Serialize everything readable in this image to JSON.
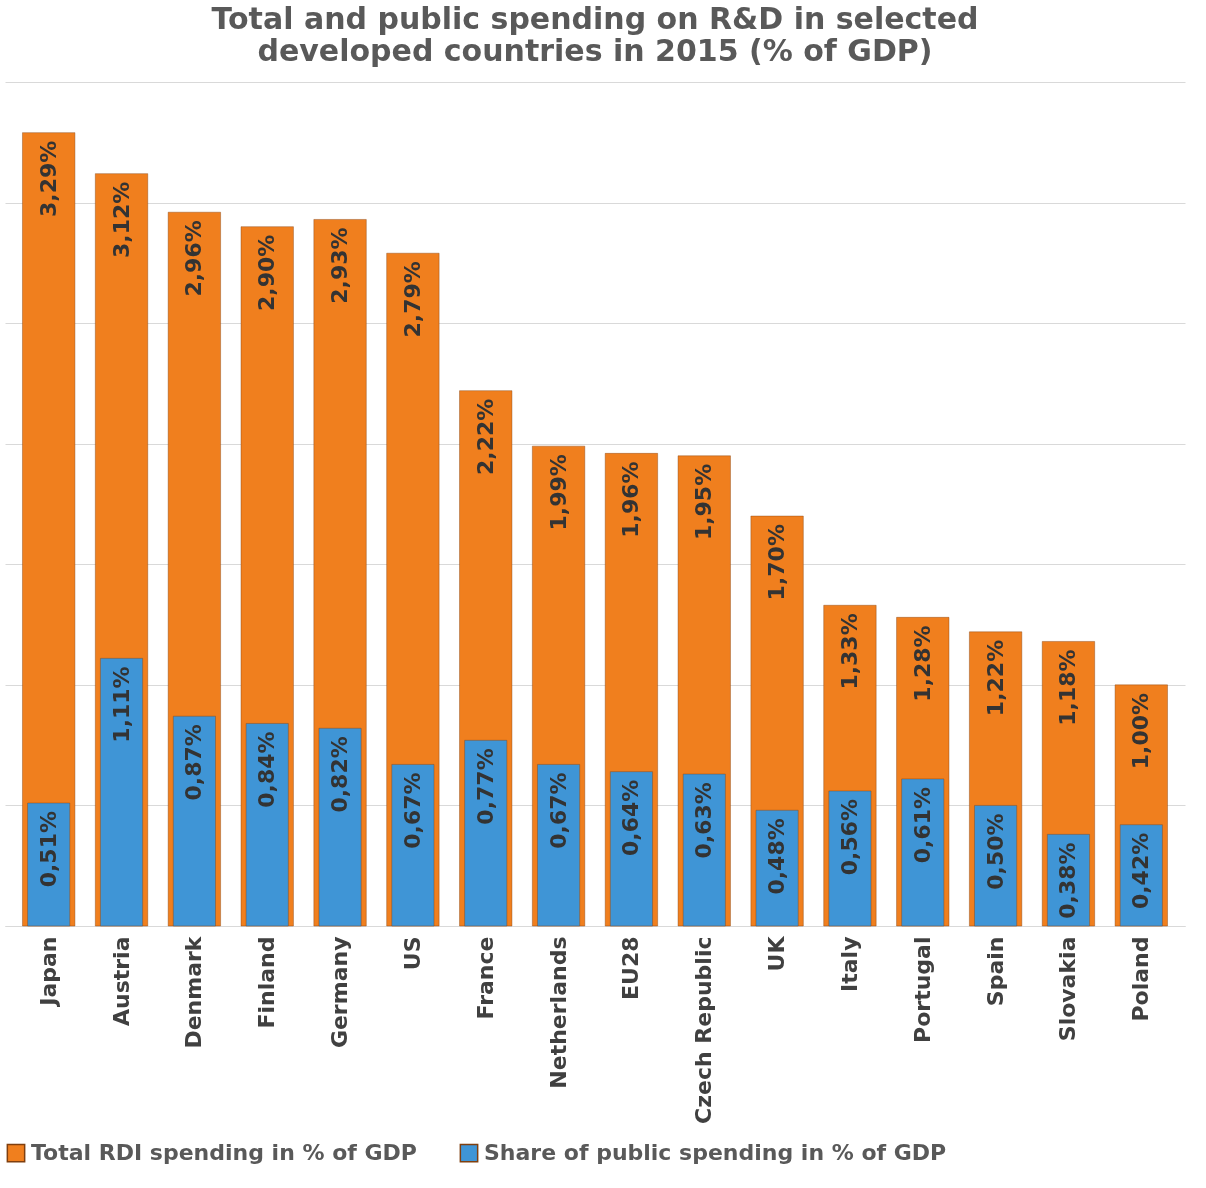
{
  "chart_data": {
    "type": "bar",
    "title": "Total and public spending on R&D in selected developed countries in 2015 (% of GDP)",
    "categories": [
      "Japan",
      "Austria",
      "Denmark",
      "Finland",
      "Germany",
      "US",
      "France",
      "Netherlands",
      "EU28",
      "Czech Republic",
      "UK",
      "Italy",
      "Portugal",
      "Spain",
      "Slovakia",
      "Poland"
    ],
    "series": [
      {
        "name": "Total RDI spending in % of GDP",
        "color": "#f07f1e",
        "values": [
          3.29,
          3.12,
          2.96,
          2.9,
          2.93,
          2.79,
          2.22,
          1.99,
          1.96,
          1.95,
          1.7,
          1.33,
          1.28,
          1.22,
          1.18,
          1.0
        ],
        "value_labels": [
          "3,29%",
          "3,12%",
          "2,96%",
          "2,90%",
          "2,93%",
          "2,79%",
          "2,22%",
          "1,99%",
          "1,96%",
          "1,95%",
          "1,70%",
          "1,33%",
          "1,28%",
          "1,22%",
          "1,18%",
          "1,00%"
        ]
      },
      {
        "name": "Share of public spending in % of GDP",
        "color": "#3f95d6",
        "values": [
          0.51,
          1.11,
          0.87,
          0.84,
          0.82,
          0.67,
          0.77,
          0.67,
          0.64,
          0.63,
          0.48,
          0.56,
          0.61,
          0.5,
          0.38,
          0.42
        ],
        "value_labels": [
          "0,51%",
          "1,11%",
          "0,87%",
          "0,84%",
          "0,82%",
          "0,67%",
          "0,77%",
          "0,67%",
          "0,64%",
          "0,63%",
          "0,48%",
          "0,56%",
          "0,61%",
          "0,50%",
          "0,38%",
          "0,42%"
        ]
      }
    ],
    "ylim": [
      0,
      3.5
    ],
    "yticks": [
      {
        "value": 0,
        "label": null
      },
      {
        "value": 0.5,
        "label": null
      },
      {
        "value": 1,
        "label": null
      },
      {
        "value": 1.5,
        "label": null
      },
      {
        "value": 2,
        "label": null
      },
      {
        "value": 2.5,
        "label": null
      },
      {
        "value": 3,
        "label": null
      },
      {
        "value": 3.5,
        "label": null
      }
    ],
    "tick_labels": "x",
    "grid": "y",
    "legend": "bottom"
  }
}
